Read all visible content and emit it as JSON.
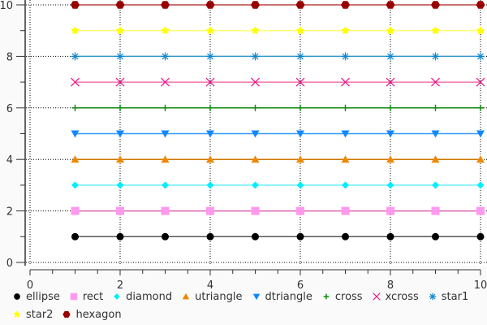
{
  "chart_data": {
    "type": "scatter",
    "title": "",
    "xlabel": "",
    "ylabel": "",
    "xlim": [
      0,
      10
    ],
    "ylim": [
      0,
      10
    ],
    "xticks": [
      "0",
      "2",
      "4",
      "6",
      "8",
      "10"
    ],
    "yticks": [
      "0",
      "2",
      "4",
      "6",
      "8",
      "10"
    ],
    "grid": true,
    "legend_placement": "bottom",
    "x": [
      1,
      2,
      3,
      4,
      5,
      6,
      7,
      8,
      9,
      10
    ],
    "series": [
      {
        "name": "ellipse",
        "marker": "ellipse",
        "y": 1,
        "color": "#000000",
        "line": "#555555"
      },
      {
        "name": "rect",
        "marker": "rect",
        "y": 2,
        "color": "#ff99ee",
        "line": "#dd66bb"
      },
      {
        "name": "diamond",
        "marker": "diamond",
        "y": 3,
        "color": "#00eeff",
        "line": "#66eeff"
      },
      {
        "name": "utriangle",
        "marker": "utriangle",
        "y": 4,
        "color": "#ee8800",
        "line": "#cc7700"
      },
      {
        "name": "dtriangle",
        "marker": "dtriangle",
        "y": 5,
        "color": "#1188ff",
        "line": "#3399ff"
      },
      {
        "name": "cross",
        "marker": "cross",
        "y": 6,
        "color": "#118811",
        "line": "#118811"
      },
      {
        "name": "xcross",
        "marker": "xcross",
        "y": 7,
        "color": "#ee1188",
        "line": "#ee77aa"
      },
      {
        "name": "star1",
        "marker": "star1",
        "y": 8,
        "color": "#1188cc",
        "line": "#3399cc"
      },
      {
        "name": "star2",
        "marker": "star2",
        "y": 9,
        "color": "#ffff00",
        "line": "#ffff77"
      },
      {
        "name": "hexagon",
        "marker": "hexagon",
        "y": 10,
        "color": "#990000",
        "line": "#bb4444"
      }
    ]
  }
}
